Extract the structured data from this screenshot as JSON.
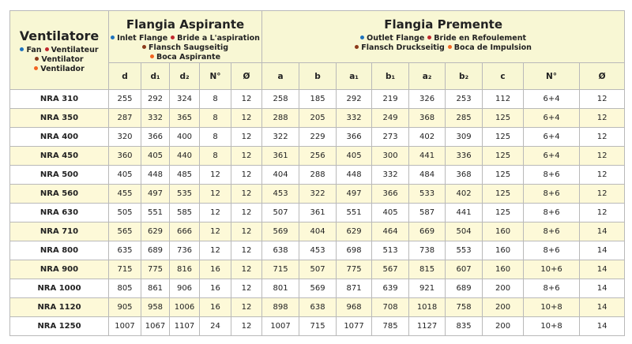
{
  "header": {
    "fan": {
      "title": "Ventilatore",
      "languages": [
        [
          "Fan",
          "Ventilateur"
        ],
        [
          "Ventilator",
          "Ventilador"
        ]
      ]
    },
    "inlet": {
      "title": "Flangia Aspirante",
      "languages": [
        [
          "Inlet Flange",
          "Bride a L'aspiration"
        ],
        [
          "Flansch Saugseitig",
          "Boca Aspirante"
        ]
      ]
    },
    "outlet": {
      "title": "Flangia Premente",
      "languages": [
        [
          "Outlet Flange",
          "Bride en Refoulement"
        ],
        [
          "Flansch Druckseitig",
          "Boca de Impulsion"
        ]
      ]
    }
  },
  "table": {
    "columns": [
      "d",
      "d₁",
      "d₂",
      "N°",
      "Ø",
      "a",
      "b",
      "a₁",
      "b₁",
      "a₂",
      "b₂",
      "c",
      "N°",
      "Ø"
    ],
    "rows": [
      [
        "NRA 310",
        255,
        292,
        324,
        8,
        12,
        258,
        185,
        292,
        219,
        326,
        253,
        112,
        "6+4",
        12
      ],
      [
        "NRA 350",
        287,
        332,
        365,
        8,
        12,
        288,
        205,
        332,
        249,
        368,
        285,
        125,
        "6+4",
        12
      ],
      [
        "NRA 400",
        320,
        366,
        400,
        8,
        12,
        322,
        229,
        366,
        273,
        402,
        309,
        125,
        "6+4",
        12
      ],
      [
        "NRA 450",
        360,
        405,
        440,
        8,
        12,
        361,
        256,
        405,
        300,
        441,
        336,
        125,
        "6+4",
        12
      ],
      [
        "NRA 500",
        405,
        448,
        485,
        12,
        12,
        404,
        288,
        448,
        332,
        484,
        368,
        125,
        "8+6",
        12
      ],
      [
        "NRA 560",
        455,
        497,
        535,
        12,
        12,
        453,
        322,
        497,
        366,
        533,
        402,
        125,
        "8+6",
        12
      ],
      [
        "NRA 630",
        505,
        551,
        585,
        12,
        12,
        507,
        361,
        551,
        405,
        587,
        441,
        125,
        "8+6",
        12
      ],
      [
        "NRA 710",
        565,
        629,
        666,
        12,
        12,
        569,
        404,
        629,
        464,
        669,
        504,
        160,
        "8+6",
        14
      ],
      [
        "NRA 800",
        635,
        689,
        736,
        12,
        12,
        638,
        453,
        698,
        513,
        738,
        553,
        160,
        "8+6",
        14
      ],
      [
        "NRA 900",
        715,
        775,
        816,
        16,
        12,
        715,
        507,
        775,
        567,
        815,
        607,
        160,
        "10+6",
        14
      ],
      [
        "NRA 1000",
        805,
        861,
        906,
        16,
        12,
        801,
        569,
        871,
        639,
        921,
        689,
        200,
        "8+6",
        14
      ],
      [
        "NRA 1120",
        905,
        958,
        1006,
        16,
        12,
        898,
        638,
        968,
        708,
        1018,
        758,
        200,
        "10+8",
        14
      ],
      [
        "NRA 1250",
        1007,
        1067,
        1107,
        24,
        12,
        1007,
        715,
        1077,
        785,
        1127,
        835,
        200,
        "10+8",
        14
      ]
    ]
  }
}
